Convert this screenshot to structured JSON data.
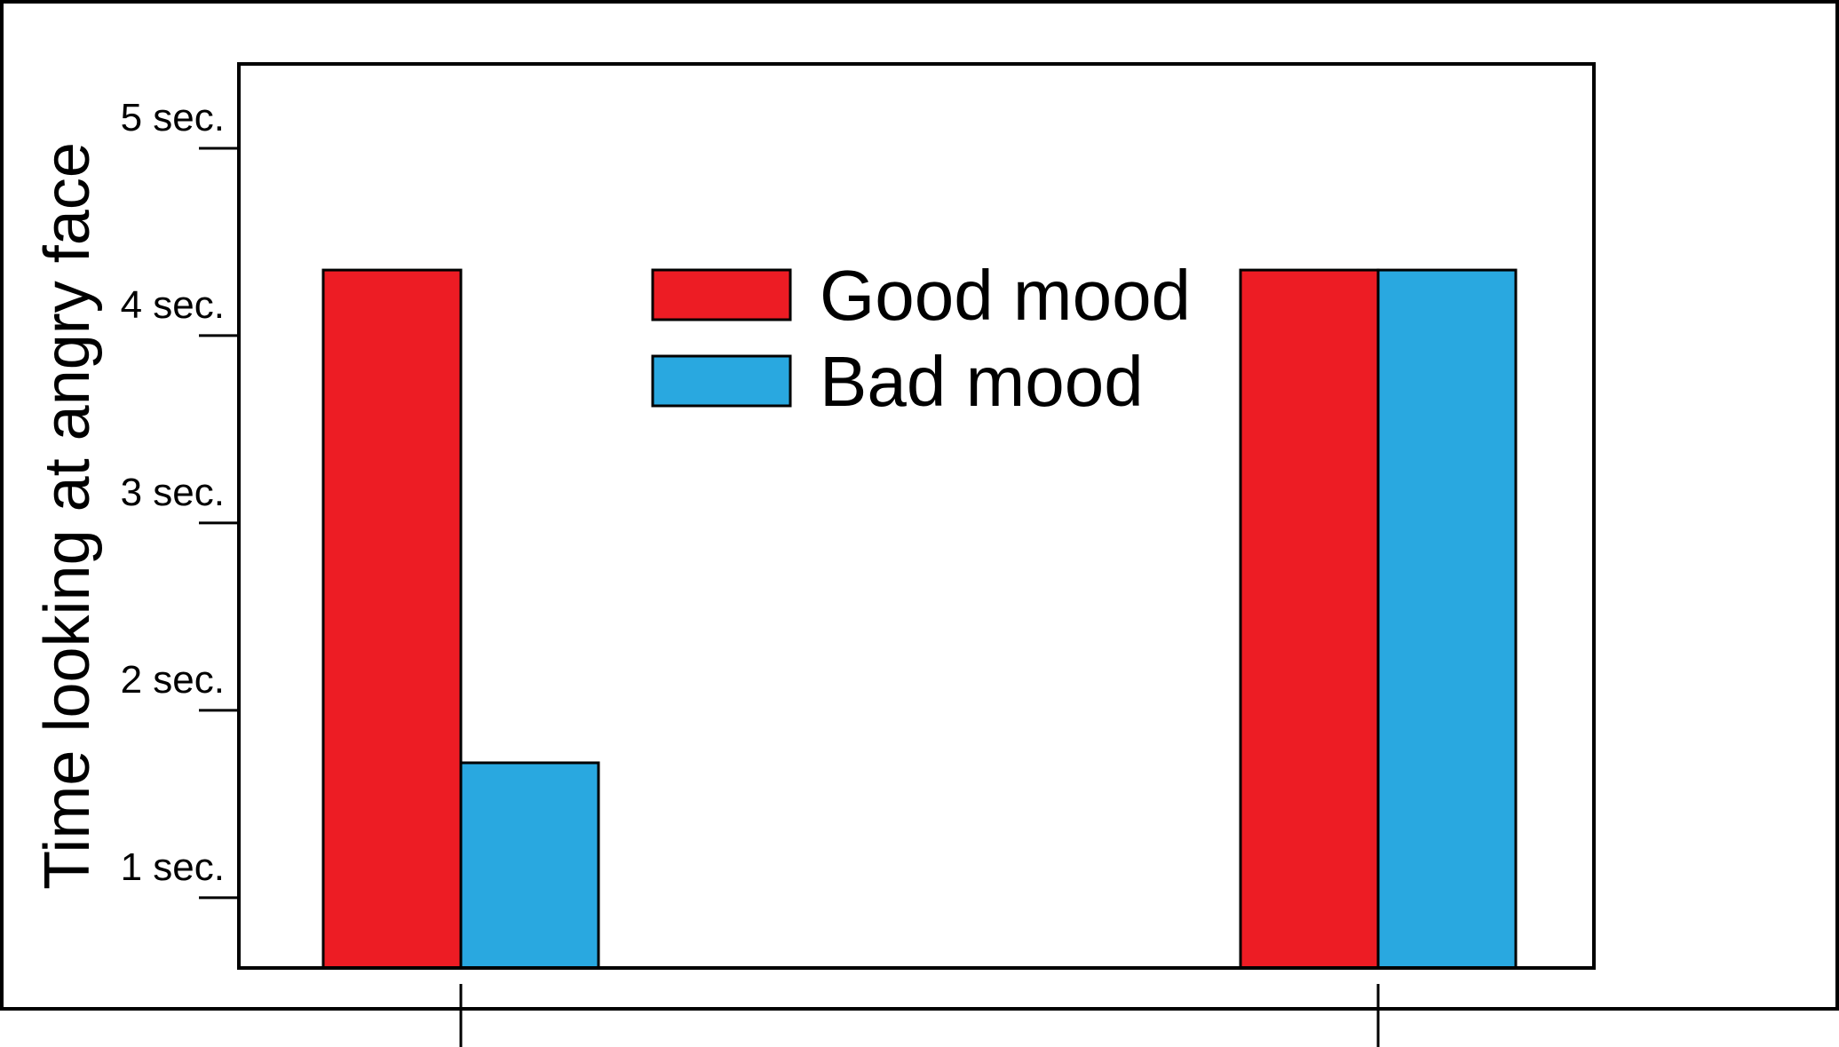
{
  "chart_data": {
    "type": "bar",
    "title": "",
    "xlabel": "",
    "ylabel": "Time looking at angry face",
    "ylim": [
      0.625,
      5.45
    ],
    "yticks": [
      1,
      2,
      3,
      4,
      5
    ],
    "ytick_labels": [
      "1 sec.",
      "2 sec.",
      "3 sec.",
      "4 sec.",
      "5 sec."
    ],
    "categories": [
      "",
      ""
    ],
    "series": [
      {
        "name": "Good mood",
        "color": "#ed1c24",
        "values": [
          4.35,
          4.35
        ]
      },
      {
        "name": "Bad mood",
        "color": "#29a8e0",
        "values": [
          1.72,
          4.35
        ]
      }
    ],
    "grid": false,
    "legend_position": "top-center"
  }
}
